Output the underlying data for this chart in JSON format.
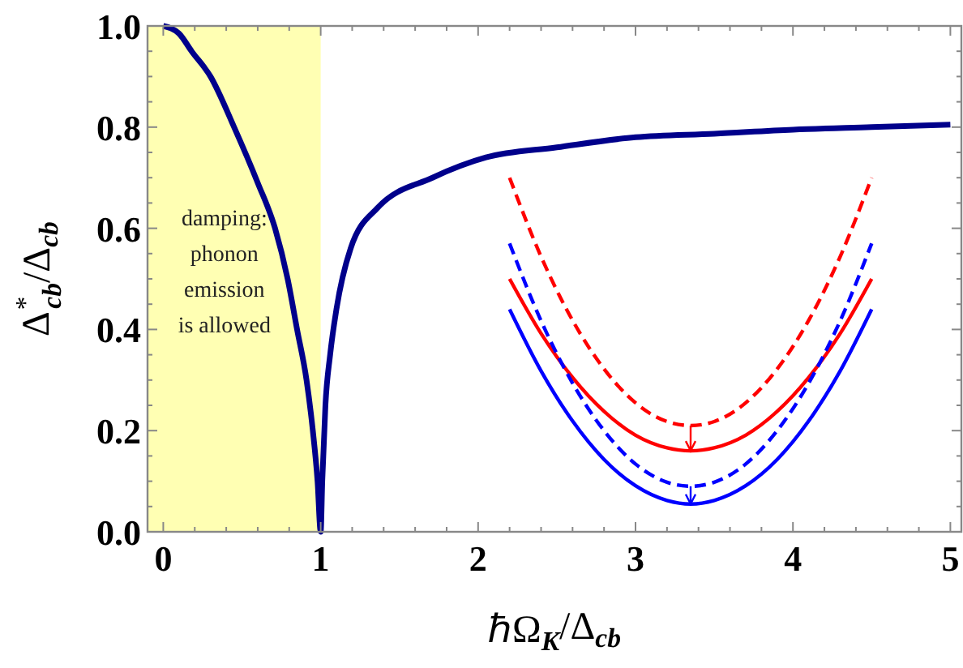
{
  "chart_data": {
    "type": "line",
    "xlabel": "ℏΩ$_{K}$/Δ$_{cb}$",
    "ylabel": "Δ$^{*}$$_{cb}$/Δ$_{cb}$",
    "xlim": [
      -0.1,
      5.07
    ],
    "ylim": [
      0,
      1
    ],
    "xticks": [
      0,
      {
        "value": 0.2,
        "label": null
      },
      {
        "value": 0.4,
        "label": null
      },
      {
        "value": 0.6,
        "label": null
      },
      {
        "value": 0.8,
        "label": null
      },
      1,
      {
        "value": 1.2,
        "label": null
      },
      {
        "value": 1.4,
        "label": null
      },
      {
        "value": 1.6,
        "label": null
      },
      {
        "value": 1.8,
        "label": null
      },
      2,
      {
        "value": 2.2,
        "label": null
      },
      {
        "value": 2.4,
        "label": null
      },
      {
        "value": 2.6,
        "label": null
      },
      {
        "value": 2.8,
        "label": null
      },
      3,
      {
        "value": 3.2,
        "label": null
      },
      {
        "value": 3.4,
        "label": null
      },
      {
        "value": 3.6,
        "label": null
      },
      {
        "value": 3.8,
        "label": null
      },
      4,
      {
        "value": 4.2,
        "label": null
      },
      {
        "value": 4.4,
        "label": null
      },
      {
        "value": 4.6,
        "label": null
      },
      {
        "value": 4.8,
        "label": null
      },
      5
    ],
    "yticks": [
      {
        "value": 0,
        "label": "0.0"
      },
      {
        "value": 0.05,
        "label": null
      },
      {
        "value": 0.1,
        "label": null
      },
      {
        "value": 0.15,
        "label": null
      },
      {
        "value": 0.2,
        "label": "0.2"
      },
      {
        "value": 0.25,
        "label": null
      },
      {
        "value": 0.3,
        "label": null
      },
      {
        "value": 0.35,
        "label": null
      },
      {
        "value": 0.4,
        "label": "0.4"
      },
      {
        "value": 0.45,
        "label": null
      },
      {
        "value": 0.5,
        "label": null
      },
      {
        "value": 0.55,
        "label": null
      },
      {
        "value": 0.6,
        "label": "0.6"
      },
      {
        "value": 0.65,
        "label": null
      },
      {
        "value": 0.7,
        "label": null
      },
      {
        "value": 0.75,
        "label": null
      },
      {
        "value": 0.8,
        "label": "0.8"
      },
      {
        "value": 0.85,
        "label": null
      },
      {
        "value": 0.9,
        "label": null
      },
      {
        "value": 0.95,
        "label": null
      },
      {
        "value": 1,
        "label": "1.0"
      }
    ],
    "grid": false,
    "marker": "none",
    "bands": [
      {
        "axis": "x",
        "from": -0.1,
        "to": 1,
        "label": "damping:\nphonon\nemission\nis allowed",
        "color": "#ffffb3"
      }
    ],
    "series": [
      {
        "color": "#00008b",
        "line_style": "solid",
        "x": [
          0,
          0.1,
          0.18,
          0.3,
          0.45,
          0.6,
          0.71,
          0.79,
          0.85,
          0.91,
          0.95,
          0.98,
          1,
          1.01,
          1.03,
          1.06,
          1.1,
          1.19,
          1.36,
          1.71,
          2.05,
          2.5,
          3,
          3.5,
          4,
          4.5,
          5
        ],
        "values": [
          1,
          0.985,
          0.95,
          0.9,
          0.8,
          0.69,
          0.6,
          0.5,
          0.4,
          0.3,
          0.2,
          0.1,
          0,
          0.1,
          0.25,
          0.35,
          0.44,
          0.56,
          0.64,
          0.7,
          0.74,
          0.76,
          0.78,
          0.787,
          0.795,
          0.8,
          0.805
        ]
      },
      {
        "color": "#ff0000",
        "line_style": "dashed",
        "x": [
          2.2,
          2.4,
          2.6,
          2.8,
          3,
          3.2,
          3.35,
          3.5,
          3.7,
          3.9,
          4.1,
          4.3,
          4.5
        ],
        "values": [
          0.7,
          0.544,
          0.418,
          0.322,
          0.255,
          0.218,
          0.21,
          0.218,
          0.255,
          0.322,
          0.418,
          0.544,
          0.7
        ]
      },
      {
        "color": "#ff0000",
        "line_style": "solid",
        "x": [
          2.2,
          2.4,
          2.6,
          2.8,
          3,
          3.2,
          3.35,
          3.5,
          3.7,
          3.9,
          4.1,
          4.3,
          4.5
        ],
        "values": [
          0.5,
          0.392,
          0.305,
          0.238,
          0.191,
          0.166,
          0.16,
          0.166,
          0.191,
          0.238,
          0.305,
          0.392,
          0.5
        ]
      },
      {
        "color": "#0000ff",
        "line_style": "dashed",
        "x": [
          2.2,
          2.4,
          2.6,
          2.8,
          3,
          3.2,
          3.35,
          3.5,
          3.7,
          3.9,
          4.1,
          4.3,
          4.5
        ],
        "values": [
          0.57,
          0.417,
          0.294,
          0.2,
          0.134,
          0.098,
          0.09,
          0.098,
          0.134,
          0.2,
          0.294,
          0.417,
          0.57
        ]
      },
      {
        "color": "#0000ff",
        "line_style": "solid",
        "x": [
          2.2,
          2.4,
          2.6,
          2.8,
          3,
          3.2,
          3.35,
          3.5,
          3.7,
          3.9,
          4.1,
          4.3,
          4.5
        ],
        "values": [
          0.44,
          0.318,
          0.219,
          0.143,
          0.091,
          0.062,
          0.055,
          0.062,
          0.091,
          0.143,
          0.219,
          0.318,
          0.44
        ]
      }
    ]
  }
}
